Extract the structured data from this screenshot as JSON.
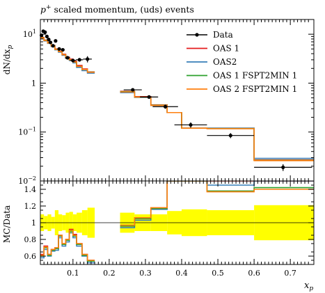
{
  "chart_data": [
    {
      "panel": "main",
      "type": "line",
      "title": "p⁺ scaled momentum, (uds) events",
      "title_italic_part": "p",
      "title_superscript": "+",
      "title_rest": " scaled momentum, (uds) events",
      "ylabel": "dN/dx",
      "ylabel_sub": "p",
      "yscale": "log",
      "ylim": [
        0.01,
        20
      ],
      "xlim": [
        0.01,
        0.765
      ],
      "y_ticks": [
        {
          "value": 10,
          "base": "10",
          "exp": "1"
        },
        {
          "value": 1,
          "base": "1",
          "exp": ""
        },
        {
          "value": 0.1,
          "base": "10",
          "exp": "−1"
        },
        {
          "value": 0.01,
          "base": "10",
          "exp": "−2"
        }
      ],
      "legend_position": "top-right",
      "data": {
        "name": "Data",
        "color": "#000000",
        "points": [
          {
            "x": 0.013,
            "y": 9.5,
            "yerr": 0.5,
            "xerr": 0.003
          },
          {
            "x": 0.018,
            "y": 11.5,
            "yerr": 0.6,
            "xerr": 0.003
          },
          {
            "x": 0.023,
            "y": 11.0,
            "yerr": 0.6,
            "xerr": 0.003
          },
          {
            "x": 0.028,
            "y": 9.0,
            "yerr": 0.5,
            "xerr": 0.003
          },
          {
            "x": 0.033,
            "y": 7.8,
            "yerr": 0.4,
            "xerr": 0.003
          },
          {
            "x": 0.038,
            "y": 6.8,
            "yerr": 0.35,
            "xerr": 0.003
          },
          {
            "x": 0.045,
            "y": 5.8,
            "yerr": 0.3,
            "xerr": 0.004
          },
          {
            "x": 0.052,
            "y": 7.3,
            "yerr": 0.4,
            "xerr": 0.004
          },
          {
            "x": 0.062,
            "y": 5.0,
            "yerr": 0.3,
            "xerr": 0.005
          },
          {
            "x": 0.072,
            "y": 4.8,
            "yerr": 0.3,
            "xerr": 0.005
          },
          {
            "x": 0.085,
            "y": 3.3,
            "yerr": 0.2,
            "xerr": 0.007
          },
          {
            "x": 0.1,
            "y": 2.9,
            "yerr": 0.2,
            "xerr": 0.008
          },
          {
            "x": 0.118,
            "y": 3.0,
            "yerr": 0.25,
            "xerr": 0.01
          },
          {
            "x": 0.14,
            "y": 3.1,
            "yerr": 0.45,
            "xerr": 0.012
          },
          {
            "x": 0.265,
            "y": 0.73,
            "yerr": 0.05,
            "xerr": 0.025
          },
          {
            "x": 0.31,
            "y": 0.52,
            "yerr": 0.04,
            "xerr": 0.025
          },
          {
            "x": 0.355,
            "y": 0.33,
            "yerr": 0.03,
            "xerr": 0.035
          },
          {
            "x": 0.425,
            "y": 0.14,
            "yerr": 0.018,
            "xerr": 0.045
          },
          {
            "x": 0.535,
            "y": 0.085,
            "yerr": 0.01,
            "xerr": 0.065
          },
          {
            "x": 0.68,
            "y": 0.019,
            "yerr": 0.003,
            "xerr": 0.08
          }
        ]
      },
      "series": [
        {
          "name": "OAS 1",
          "color": "#e41a1c",
          "bins": [
            0.01,
            0.02,
            0.03,
            0.04,
            0.05,
            0.06,
            0.07,
            0.08,
            0.09,
            0.1,
            0.11,
            0.125,
            0.14,
            0.16,
            0.23,
            0.27,
            0.315,
            0.36,
            0.4,
            0.47,
            0.6,
            0.765
          ],
          "values": [
            8.6,
            7.6,
            6.8,
            5.9,
            5.0,
            4.5,
            3.9,
            3.4,
            3.1,
            2.8,
            2.3,
            1.95,
            1.7,
            null,
            0.68,
            0.53,
            0.36,
            0.25,
            0.12,
            0.12,
            0.027
          ]
        },
        {
          "name": "OAS2",
          "color": "#377eb8",
          "bins": [
            0.01,
            0.02,
            0.03,
            0.04,
            0.05,
            0.06,
            0.07,
            0.08,
            0.09,
            0.1,
            0.11,
            0.125,
            0.14,
            0.16,
            0.23,
            0.27,
            0.315,
            0.36,
            0.4,
            0.47,
            0.6,
            0.765
          ],
          "values": [
            8.2,
            7.3,
            6.5,
            5.6,
            4.8,
            4.3,
            3.7,
            3.2,
            2.9,
            2.6,
            2.1,
            1.8,
            1.6,
            null,
            0.64,
            0.51,
            0.35,
            0.25,
            0.12,
            0.12,
            0.029
          ]
        },
        {
          "name": "OAS 1 FSPT2MIN 1",
          "color": "#2ca02c",
          "bins": [
            0.01,
            0.02,
            0.03,
            0.04,
            0.05,
            0.06,
            0.07,
            0.08,
            0.09,
            0.1,
            0.11,
            0.125,
            0.14,
            0.16,
            0.23,
            0.27,
            0.315,
            0.36,
            0.4,
            0.47,
            0.6,
            0.765
          ],
          "values": [
            8.5,
            7.5,
            6.7,
            5.8,
            4.9,
            4.4,
            3.8,
            3.3,
            3.0,
            2.7,
            2.2,
            1.9,
            1.68,
            null,
            0.67,
            0.52,
            0.355,
            0.25,
            0.12,
            0.118,
            0.0265
          ]
        },
        {
          "name": "OAS 2 FSPT2MIN 1",
          "color": "#ff7f0e",
          "bins": [
            0.01,
            0.02,
            0.03,
            0.04,
            0.05,
            0.06,
            0.07,
            0.08,
            0.09,
            0.1,
            0.11,
            0.125,
            0.14,
            0.16,
            0.23,
            0.27,
            0.315,
            0.36,
            0.4,
            0.47,
            0.6,
            0.765
          ],
          "values": [
            8.4,
            7.4,
            6.6,
            5.7,
            4.9,
            4.4,
            3.8,
            3.3,
            3.0,
            2.7,
            2.2,
            1.9,
            1.67,
            null,
            0.66,
            0.52,
            0.35,
            0.25,
            0.12,
            0.117,
            0.026
          ]
        }
      ]
    },
    {
      "panel": "ratio",
      "type": "line",
      "ylabel": "MC/Data",
      "xlabel": "x",
      "xlabel_sub": "p",
      "ylim": [
        0.5,
        1.5
      ],
      "xlim": [
        0.01,
        0.765
      ],
      "y_ticks": [
        "0.6",
        "0.8",
        "1",
        "1.2",
        "1.4"
      ],
      "x_ticks": [
        "0.1",
        "0.2",
        "0.3",
        "0.4",
        "0.5",
        "0.6",
        "0.7"
      ],
      "band_color": "#ffff00",
      "band": {
        "bins": [
          0.01,
          0.02,
          0.03,
          0.04,
          0.05,
          0.06,
          0.07,
          0.08,
          0.09,
          0.1,
          0.11,
          0.125,
          0.14,
          0.16,
          0.23,
          0.27,
          0.315,
          0.36,
          0.4,
          0.47,
          0.6,
          0.765
        ],
        "lo": [
          0.9,
          0.92,
          0.9,
          0.93,
          0.85,
          0.9,
          0.91,
          0.88,
          0.87,
          0.9,
          0.88,
          0.85,
          0.82,
          null,
          0.88,
          0.9,
          0.9,
          0.86,
          0.84,
          0.85,
          0.79
        ],
        "hi": [
          1.1,
          1.08,
          1.1,
          1.07,
          1.15,
          1.1,
          1.09,
          1.12,
          1.13,
          1.1,
          1.12,
          1.15,
          1.18,
          null,
          1.12,
          1.1,
          1.1,
          1.14,
          1.16,
          1.15,
          1.21
        ]
      },
      "series": [
        {
          "name": "OAS 1",
          "color": "#e41a1c",
          "values": [
            0.62,
            0.72,
            0.62,
            0.68,
            0.7,
            0.85,
            0.75,
            0.8,
            0.92,
            0.86,
            0.75,
            0.62,
            0.55,
            null,
            0.96,
            1.05,
            1.17,
            1.5,
            1.5,
            1.5,
            1.5
          ]
        },
        {
          "name": "OAS2",
          "color": "#377eb8",
          "values": [
            0.58,
            0.68,
            0.6,
            0.66,
            0.67,
            0.82,
            0.72,
            0.77,
            0.88,
            0.82,
            0.72,
            0.6,
            0.52,
            null,
            0.94,
            1.03,
            1.16,
            1.5,
            1.5,
            1.45,
            1.5
          ]
        },
        {
          "name": "OAS 1 FSPT2MIN 1",
          "color": "#2ca02c",
          "values": [
            0.6,
            0.7,
            0.61,
            0.67,
            0.69,
            0.84,
            0.74,
            0.79,
            0.9,
            0.84,
            0.74,
            0.61,
            0.54,
            null,
            0.96,
            1.05,
            1.17,
            1.5,
            1.5,
            1.38,
            1.42
          ]
        },
        {
          "name": "OAS 2 FSPT2MIN 1",
          "color": "#ff7f0e",
          "values": [
            0.61,
            0.71,
            0.62,
            0.68,
            0.7,
            0.85,
            0.75,
            0.8,
            0.91,
            0.85,
            0.75,
            0.62,
            0.55,
            null,
            0.97,
            1.06,
            1.18,
            1.5,
            1.5,
            1.37,
            1.4
          ]
        }
      ]
    }
  ]
}
